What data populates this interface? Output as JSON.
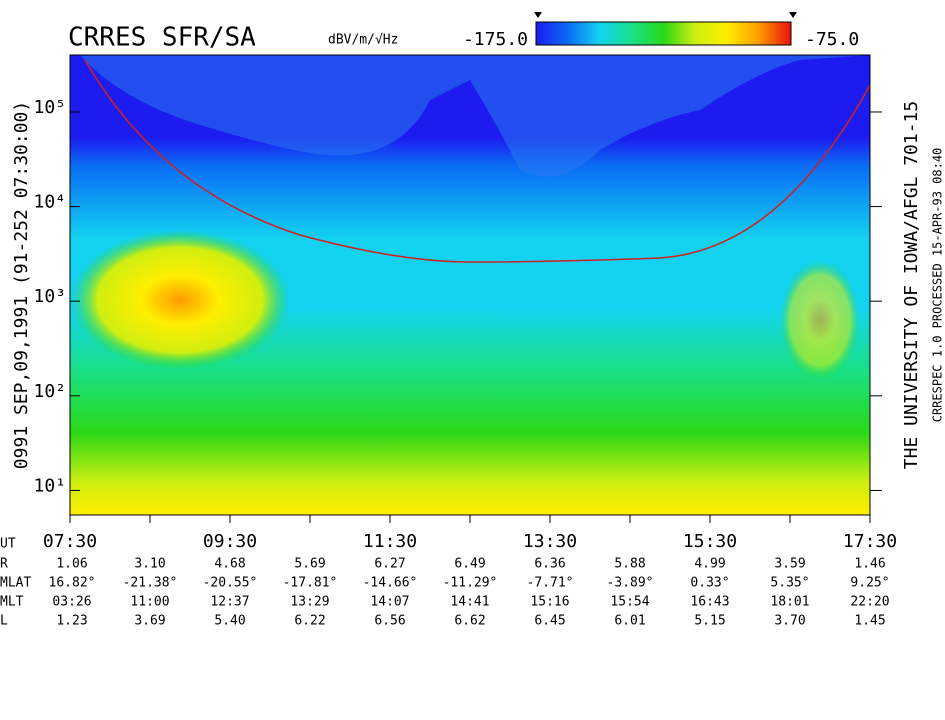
{
  "chart_data": {
    "type": "spectrogram",
    "title": "CRRES SFR/SA",
    "colorbar_unit": "dBV/m/√Hz",
    "colorbar_min": {
      "value": -175,
      "label": "-175.0"
    },
    "colorbar_max": {
      "value": -75,
      "label": "-75.0"
    },
    "colormap": [
      "#1c1cf0",
      "#0a6cf5",
      "#12d2f0",
      "#18e08a",
      "#2ad818",
      "#cfee10",
      "#ffee00",
      "#ff9a00",
      "#e81010"
    ],
    "left_label": "0991   SEP,09,1991  (91-252 07:30:00)",
    "right_label": "THE UNIVERSITY OF IOWA/AFGL 701-15",
    "footer_label": "CRRESPEC 1.0   PROCESSED 15-APR-93  08:40",
    "log_y": true,
    "ylim": [
      5.5,
      400000
    ],
    "yticks": [
      {
        "value": 10,
        "label": "10¹"
      },
      {
        "value": 100,
        "label": "10²"
      },
      {
        "value": 1000,
        "label": "10³"
      },
      {
        "value": 10000,
        "label": "10⁴"
      },
      {
        "value": 100000,
        "label": "10⁵"
      }
    ],
    "xlim": [
      7.5,
      17.5
    ],
    "xticks": [
      {
        "value": 7.5,
        "label": "07:30"
      },
      {
        "value": 9.5,
        "label": "09:30"
      },
      {
        "value": 11.5,
        "label": "11:30"
      },
      {
        "value": 13.5,
        "label": "13:30"
      },
      {
        "value": 15.5,
        "label": "15:30"
      },
      {
        "value": 17.5,
        "label": "17:30"
      }
    ],
    "xminorticks": [
      8.5,
      10.5,
      12.5,
      14.5,
      16.5
    ]
  },
  "ephemeris": {
    "x_label": "UT",
    "rows": [
      {
        "label": "R",
        "values": [
          "1.06",
          "3.10",
          "4.68",
          "5.69",
          "6.27",
          "6.49",
          "6.36",
          "5.88",
          "4.99",
          "3.59",
          "1.46"
        ]
      },
      {
        "label": "MLAT",
        "values": [
          "16.82°",
          "-21.38°",
          "-20.55°",
          "-17.81°",
          "-14.66°",
          "-11.29°",
          "-7.71°",
          "-3.89°",
          "0.33°",
          "5.35°",
          "9.25°"
        ]
      },
      {
        "label": "MLT",
        "values": [
          "03:26",
          "11:00",
          "12:37",
          "13:29",
          "14:07",
          "14:41",
          "15:16",
          "15:54",
          "16:43",
          "18:01",
          "22:20"
        ]
      },
      {
        "label": "L",
        "values": [
          "1.23",
          "3.69",
          "5.40",
          "6.22",
          "6.56",
          "6.62",
          "6.45",
          "6.01",
          "5.15",
          "3.70",
          "1.45"
        ]
      }
    ]
  }
}
